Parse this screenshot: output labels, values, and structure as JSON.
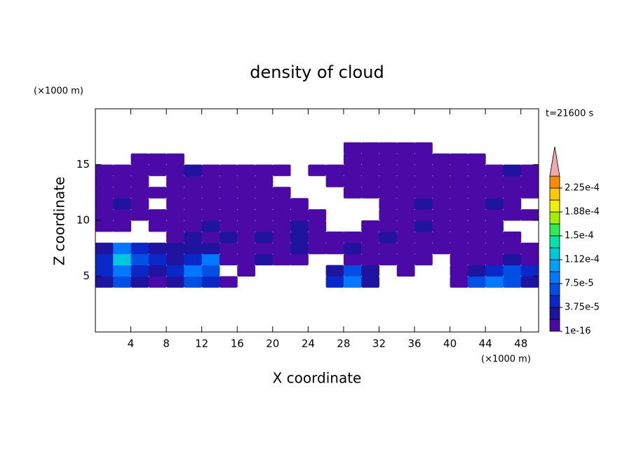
{
  "chart_data": {
    "type": "contour",
    "title": "density of cloud",
    "x_label": "X coordinate",
    "y_label": "Z coordinate",
    "x_unit": "(×1000 m)",
    "y_unit": "(×1000 m)",
    "annotation": "t=21600 s",
    "xlim": [
      0,
      50
    ],
    "ylim": [
      0,
      20
    ],
    "xticks": [
      4,
      8,
      12,
      16,
      20,
      24,
      28,
      32,
      36,
      40,
      44,
      48
    ],
    "yticks": [
      5,
      10,
      15
    ],
    "field": {
      "x": [
        1,
        3,
        5,
        7,
        9,
        11,
        13,
        15,
        17,
        19,
        21,
        23,
        25,
        27,
        29,
        31,
        33,
        35,
        37,
        39,
        41,
        43,
        45,
        47,
        49
      ],
      "z": [
        4.5,
        5.5,
        6.5,
        7.5,
        8.5,
        9.5,
        10.5,
        11.5,
        12.5,
        13.5,
        14.5,
        15.5,
        16.5
      ],
      "values": [
        [
          2e-05,
          6e-05,
          2e-05,
          1e-16,
          3e-05,
          6e-05,
          4e-05,
          1e-16,
          null,
          null,
          null,
          null,
          null,
          4e-05,
          8e-05,
          3e-05,
          null,
          null,
          null,
          null,
          1e-16,
          6e-05,
          8e-05,
          6e-05,
          2e-05
        ],
        [
          4e-05,
          9e-05,
          5e-05,
          3e-05,
          5e-05,
          9e-05,
          6e-05,
          null,
          1e-16,
          null,
          null,
          null,
          null,
          3e-05,
          6e-05,
          2e-05,
          null,
          1e-16,
          null,
          null,
          1e-16,
          3e-05,
          5e-05,
          7e-05,
          4e-05
        ],
        [
          5e-05,
          0.00013,
          6e-05,
          4e-05,
          3e-05,
          5e-05,
          8e-05,
          1e-16,
          1e-16,
          2e-05,
          1e-16,
          1e-16,
          null,
          null,
          1e-16,
          1e-16,
          1e-16,
          1e-16,
          1e-16,
          null,
          1e-16,
          1e-16,
          1e-16,
          2e-05,
          1e-16
        ],
        [
          3e-05,
          9e-05,
          4e-05,
          3e-05,
          2e-05,
          3e-05,
          3e-05,
          1e-16,
          1e-16,
          1e-16,
          1e-16,
          2e-05,
          1e-16,
          1e-16,
          2e-05,
          1e-16,
          1e-16,
          1e-16,
          1e-16,
          1e-16,
          1e-16,
          1e-16,
          1e-16,
          1e-16,
          1e-16
        ],
        [
          null,
          null,
          null,
          null,
          1e-16,
          2e-05,
          1e-16,
          2e-05,
          1e-16,
          2e-05,
          1e-16,
          2e-05,
          1e-16,
          1e-16,
          1e-16,
          1e-16,
          2e-05,
          1e-16,
          1e-16,
          1e-16,
          1e-16,
          1e-16,
          1e-16,
          1e-16,
          null
        ],
        [
          1e-16,
          1e-16,
          null,
          1e-16,
          1e-16,
          1e-16,
          2e-05,
          1e-16,
          1e-16,
          1e-16,
          1e-16,
          3e-05,
          1e-16,
          null,
          null,
          1e-16,
          1e-16,
          1e-16,
          2e-05,
          1e-16,
          1e-16,
          1e-16,
          1e-16,
          null,
          null
        ],
        [
          1e-16,
          1e-16,
          1e-16,
          1e-16,
          1e-16,
          1e-16,
          1e-16,
          1e-16,
          1e-16,
          1e-16,
          1e-16,
          1e-16,
          1e-16,
          null,
          null,
          null,
          1e-16,
          1e-16,
          1e-16,
          1e-16,
          1e-16,
          1e-16,
          1e-16,
          1e-16,
          1e-16
        ],
        [
          1e-16,
          2e-05,
          1e-16,
          null,
          1e-16,
          1e-16,
          1e-16,
          1e-16,
          1e-16,
          1e-16,
          1e-16,
          1e-16,
          null,
          null,
          null,
          null,
          1e-16,
          1e-16,
          2e-05,
          1e-16,
          1e-16,
          1e-16,
          2e-05,
          1e-16,
          null
        ],
        [
          1e-16,
          1e-16,
          1e-16,
          1e-16,
          1e-16,
          1e-16,
          1e-16,
          1e-16,
          1e-16,
          1e-16,
          1e-16,
          null,
          null,
          null,
          1e-16,
          1e-16,
          1e-16,
          1e-16,
          1e-16,
          1e-16,
          1e-16,
          1e-16,
          1e-16,
          1e-16,
          1e-16
        ],
        [
          1e-16,
          1e-16,
          1e-16,
          null,
          1e-16,
          1e-16,
          1e-16,
          1e-16,
          1e-16,
          1e-16,
          null,
          null,
          null,
          1e-16,
          1e-16,
          1e-16,
          1e-16,
          1e-16,
          1e-16,
          1e-16,
          1e-16,
          1e-16,
          1e-16,
          1e-16,
          1e-16
        ],
        [
          1e-16,
          1e-16,
          1e-16,
          1e-16,
          1e-16,
          2e-05,
          1e-16,
          1e-16,
          1e-16,
          1e-16,
          1e-16,
          null,
          1e-16,
          1e-16,
          1e-16,
          1e-16,
          1e-16,
          1e-16,
          1e-16,
          1e-16,
          1e-16,
          1e-16,
          1e-16,
          2e-05,
          1e-16
        ],
        [
          null,
          null,
          1e-16,
          1e-16,
          1e-16,
          null,
          null,
          null,
          null,
          null,
          null,
          null,
          null,
          null,
          1e-16,
          1e-16,
          1e-16,
          1e-16,
          1e-16,
          1e-16,
          1e-16,
          1e-16,
          null,
          null,
          null
        ],
        [
          null,
          null,
          null,
          null,
          null,
          null,
          null,
          null,
          null,
          null,
          null,
          null,
          null,
          null,
          1e-16,
          1e-16,
          1e-16,
          1e-16,
          1e-16,
          null,
          null,
          null,
          null,
          null,
          null
        ]
      ]
    },
    "colorbar": {
      "levels": [
        1e-16,
        1.875e-05,
        3.75e-05,
        5.625e-05,
        7.5e-05,
        9.375e-05,
        0.0001125,
        0.00013125,
        0.00015,
        0.00016875,
        0.0001875,
        0.00020625,
        0.000225,
        0.00024375
      ],
      "colors": [
        "#4b0aa8",
        "#1e14a0",
        "#0a28c8",
        "#0050e6",
        "#0078ff",
        "#00a0ff",
        "#00c8dc",
        "#00e6aa",
        "#28f050",
        "#a0f000",
        "#f0f000",
        "#ffc800",
        "#ff8c00"
      ],
      "extend_color": "#f0a8a8",
      "ticks": [
        {
          "value": 1e-16,
          "label": "1e-16"
        },
        {
          "value": 3.75e-05,
          "label": "3.75e-5"
        },
        {
          "value": 7.5e-05,
          "label": "7.5e-5"
        },
        {
          "value": 0.0001125,
          "label": "1.12e-4"
        },
        {
          "value": 0.00015,
          "label": "1.5e-4"
        },
        {
          "value": 0.0001875,
          "label": "1.88e-4"
        },
        {
          "value": 0.000225,
          "label": "2.25e-4"
        }
      ]
    }
  }
}
